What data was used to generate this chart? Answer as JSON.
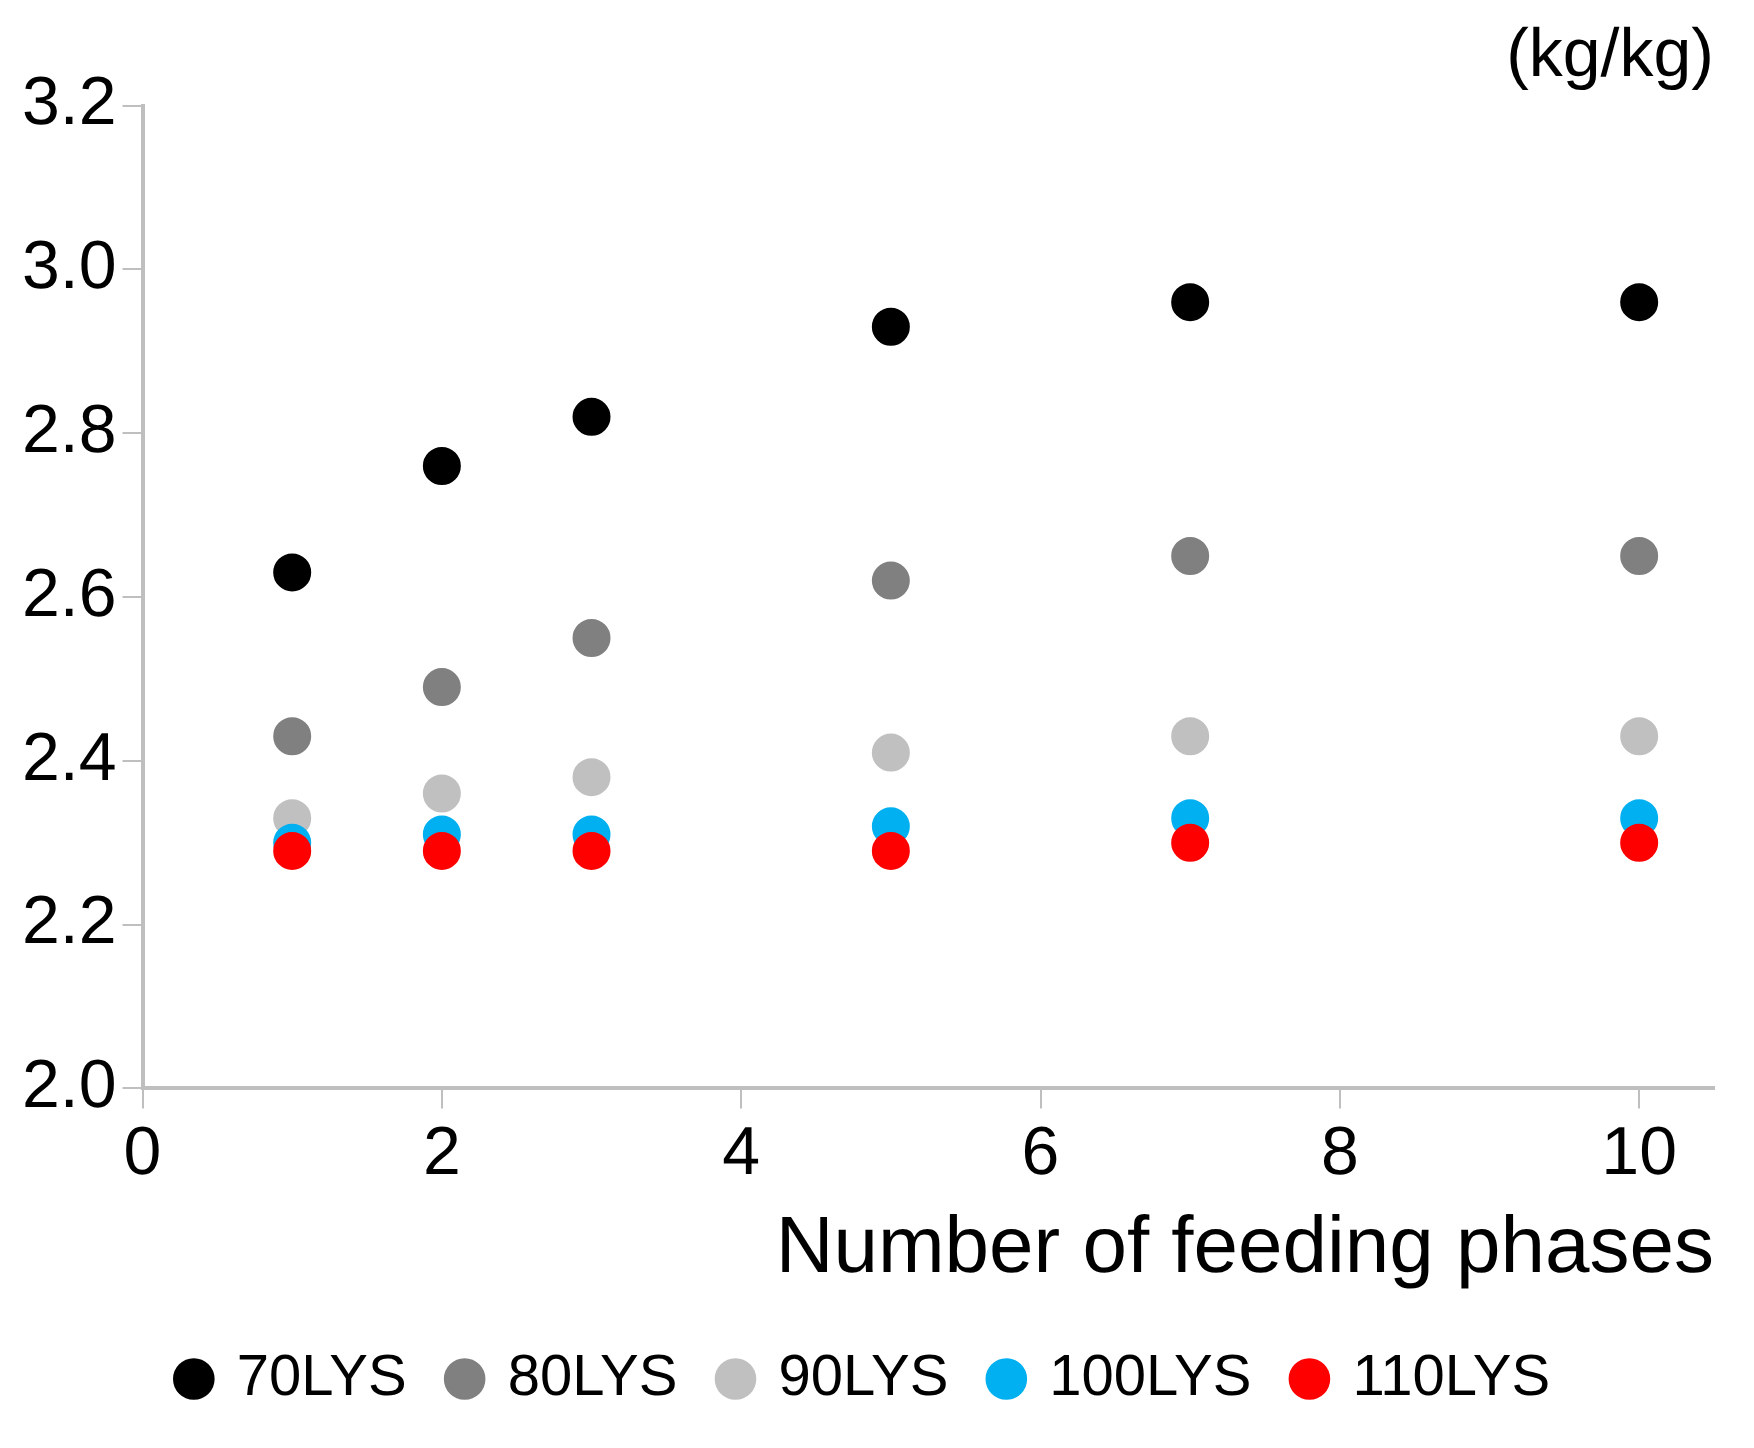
{
  "chart_data": {
    "type": "scatter",
    "title": "(kg/kg)",
    "xlabel": "Number of feeding phases",
    "x": [
      1,
      2,
      3,
      5,
      7,
      10
    ],
    "series": [
      {
        "name": "70LYS",
        "color": "#000000",
        "values": [
          2.63,
          2.76,
          2.82,
          2.93,
          2.96,
          2.96
        ]
      },
      {
        "name": "80LYS",
        "color": "#808080",
        "values": [
          2.43,
          2.49,
          2.55,
          2.62,
          2.65,
          2.65
        ]
      },
      {
        "name": "90LYS",
        "color": "#c0c0c0",
        "values": [
          2.33,
          2.36,
          2.38,
          2.41,
          2.43,
          2.43
        ]
      },
      {
        "name": "100LYS",
        "color": "#00b0f0",
        "values": [
          2.3,
          2.31,
          2.31,
          2.32,
          2.33,
          2.33
        ]
      },
      {
        "name": "110LYS",
        "color": "#ff0000",
        "values": [
          2.29,
          2.29,
          2.29,
          2.29,
          2.3,
          2.3
        ]
      }
    ],
    "xlim": [
      0,
      10.5
    ],
    "xticks": [
      0,
      2,
      4,
      6,
      8,
      10
    ],
    "ylim": [
      2.0,
      3.2
    ],
    "yticks": [
      {
        "value": 2,
        "label": "2.0"
      },
      2.2,
      2.4,
      2.6,
      2.8,
      {
        "value": 3,
        "label": "3.0"
      },
      3.2
    ],
    "grid": false,
    "legend": "bottom",
    "marker": "circle"
  }
}
